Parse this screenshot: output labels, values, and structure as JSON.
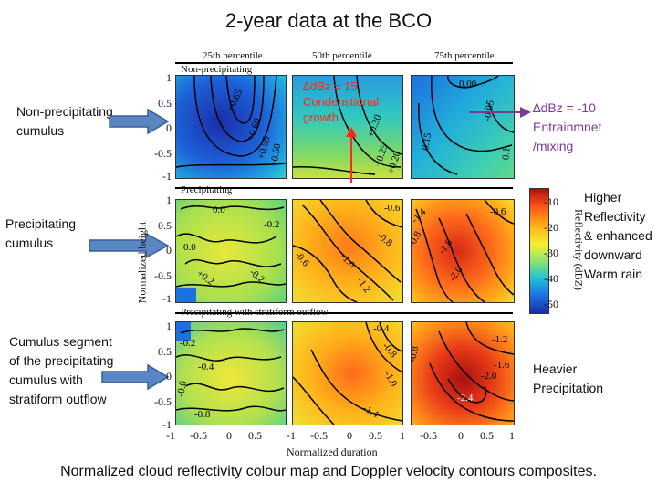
{
  "title": "2-year data at the BCO",
  "caption": "Normalized cloud reflectivity colour map and Doppler velocity contours composites.",
  "row_labels": [
    "Non-precipitating cumulus",
    "Precipitating cumulus",
    "Cumulus segment of the precipitating cumulus with stratiform outflow"
  ],
  "column_headers": [
    "25th percentile",
    "50th percentile",
    "75th percentile"
  ],
  "panel_titles": [
    "Non-precipitating",
    "Precipitating",
    "Precipitating with stratiform outflow"
  ],
  "y_axis_label": "Normalized height",
  "x_axis_label": "Normalized duration",
  "y_ticks": [
    "1",
    "0.5",
    "0",
    "-0.5",
    "-1"
  ],
  "x_ticks": [
    "-1",
    "-0.5",
    "0",
    "0.5",
    "1"
  ],
  "colorbar": {
    "label": "Reflectivity (dBZ)",
    "ticks": [
      "-10",
      "-20",
      "-30",
      "-40",
      "-50"
    ],
    "colors": [
      "#b01010",
      "#ff5a1a",
      "#ffb21a",
      "#f2f030",
      "#7fe07a",
      "#22c0d8",
      "#1c70e0",
      "#1a2ea8"
    ]
  },
  "annotations": {
    "red": "∆dBz = 15 Condenstional growth",
    "purple": "∆dBz = -10 Entrainmnet /mixing",
    "higher": "Higher Reflectivity & enhanced downward Warm rain",
    "heavier": "Heavier Precipitation"
  },
  "contour_labels": {
    "r1c1": [
      "+0.65",
      "+0.60",
      "+0.55",
      "+0.50"
    ],
    "r1c2": [
      "+0.30",
      "+0.25",
      "+0.20"
    ],
    "r1c3": [
      "0.00",
      "-0.05",
      "0.15",
      "-0.1"
    ],
    "r2c1": [
      "0.0",
      "-0.2",
      "0.0",
      "+0.2",
      "-0.2"
    ],
    "r2c2": [
      "-0.6",
      "-0.8",
      "-1.0",
      "-0.6",
      "-1.2"
    ],
    "r2c3": [
      "-1.4",
      "-1.8",
      "-2.0",
      "-0.6",
      "-0.8"
    ],
    "r3c1": [
      "-0.2",
      "-0.4",
      "-0.6",
      "-0.8"
    ],
    "r3c2": [
      "-0.4",
      "-0.8",
      "-1.4",
      "-1.0"
    ],
    "r3c3": [
      "-1.2",
      "-1.6",
      "-2.0",
      "-2.4",
      "-0.8"
    ]
  },
  "colors": {
    "arrow_fill": "#5b86c4",
    "arrow_stroke": "#3a5f96",
    "red": "#ff2a10",
    "purple": "#7b3a96"
  }
}
